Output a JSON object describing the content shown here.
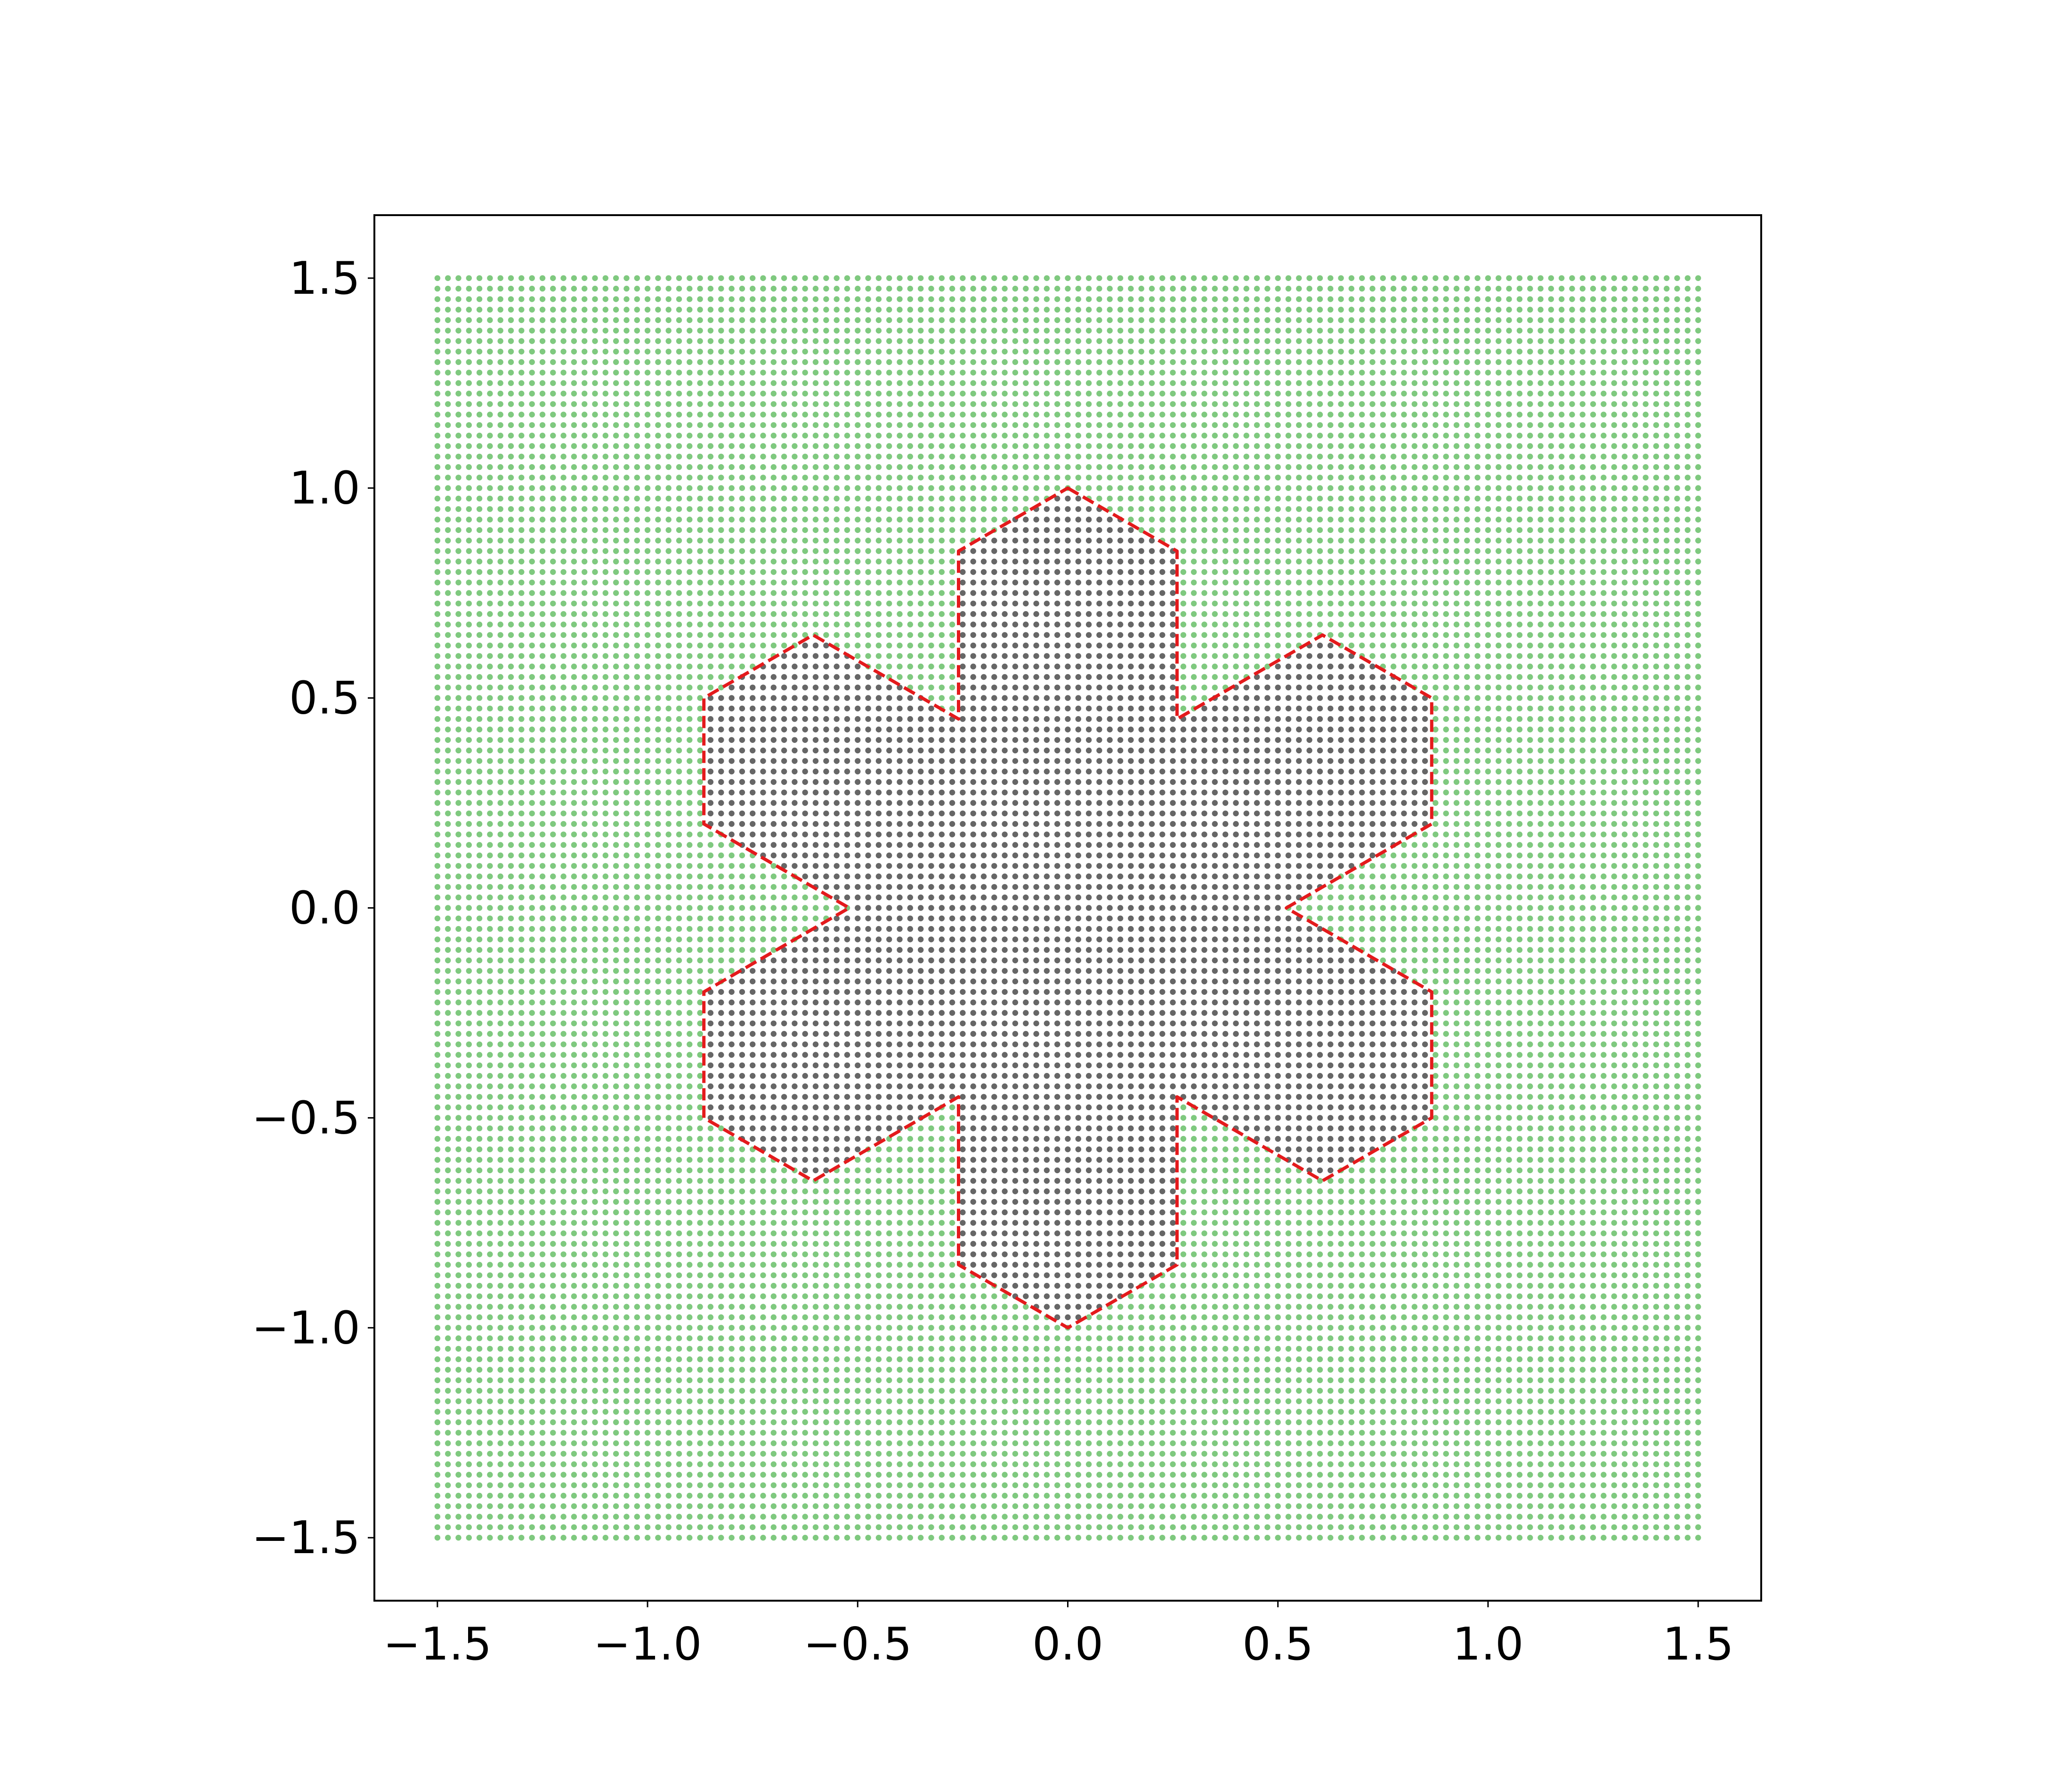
{
  "chart_data": {
    "type": "scatter",
    "title": "",
    "xlabel": "",
    "ylabel": "",
    "xlim": [
      -1.65,
      1.65
    ],
    "ylim": [
      -1.65,
      1.65
    ],
    "x_ticks": [
      -1.5,
      -1.0,
      -0.5,
      0.0,
      0.5,
      1.0,
      1.5
    ],
    "y_ticks": [
      -1.5,
      -1.0,
      -0.5,
      0.0,
      0.5,
      1.0,
      1.5
    ],
    "x_tick_labels": [
      "−1.5",
      "−1.0",
      "−0.5",
      "0.0",
      "0.5",
      "1.0",
      "1.5"
    ],
    "y_tick_labels": [
      "−1.5",
      "−1.0",
      "−0.5",
      "0.0",
      "0.5",
      "1.0",
      "1.5"
    ],
    "grid": false,
    "legend": null,
    "series": [
      {
        "role": "grid points outside region",
        "kind": "scatter",
        "color": "#7fc97f",
        "grid": {
          "x_range": [
            -1.5,
            1.5
          ],
          "y_range": [
            -1.5,
            1.5
          ],
          "points_per_axis": 121
        }
      },
      {
        "role": "grid points inside region",
        "kind": "scatter",
        "color": "#666666"
      },
      {
        "role": "region boundary",
        "kind": "line",
        "color": "#e41a1c",
        "linestyle": "dashed",
        "closed": true,
        "vertices": [
          [
            0.0,
            1.0
          ],
          [
            0.26,
            0.85
          ],
          [
            0.26,
            0.45
          ],
          [
            0.606,
            0.65
          ],
          [
            0.866,
            0.5
          ],
          [
            0.866,
            0.2
          ],
          [
            0.52,
            0.0
          ],
          [
            0.866,
            -0.2
          ],
          [
            0.866,
            -0.5
          ],
          [
            0.606,
            -0.65
          ],
          [
            0.26,
            -0.45
          ],
          [
            0.26,
            -0.85
          ],
          [
            0.0,
            -1.0
          ],
          [
            -0.26,
            -0.85
          ],
          [
            -0.26,
            -0.45
          ],
          [
            -0.606,
            -0.65
          ],
          [
            -0.866,
            -0.5
          ],
          [
            -0.866,
            -0.2
          ],
          [
            -0.52,
            0.0
          ],
          [
            -0.866,
            0.2
          ],
          [
            -0.866,
            0.5
          ],
          [
            -0.606,
            0.65
          ],
          [
            -0.26,
            0.45
          ],
          [
            -0.26,
            0.85
          ]
        ]
      }
    ]
  }
}
